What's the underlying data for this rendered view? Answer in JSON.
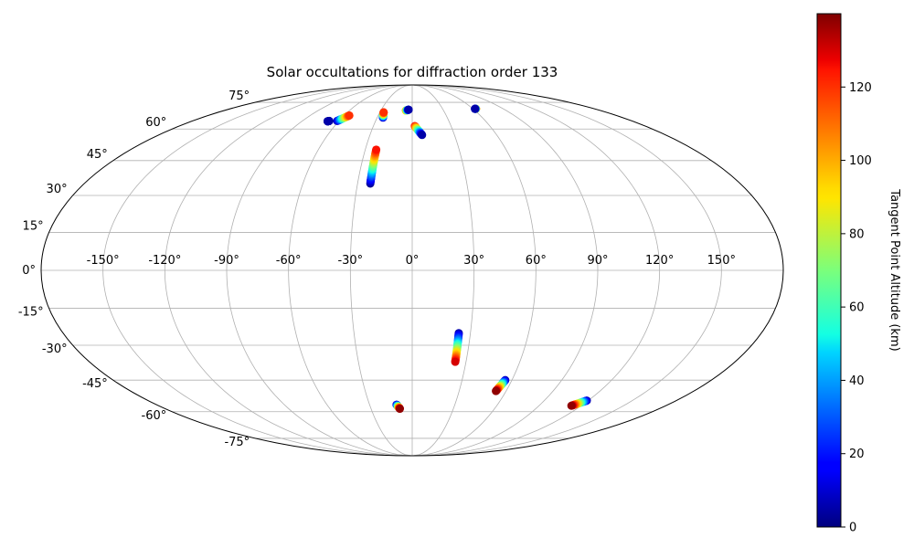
{
  "chart_data": {
    "type": "scatter",
    "projection": "mollweide",
    "title": "Solar occultations for diffraction order 133",
    "grid": true,
    "lon_ticks": [
      -150,
      -120,
      -90,
      -60,
      -30,
      0,
      30,
      60,
      90,
      120,
      150
    ],
    "lon_tick_labels": [
      "-150°",
      "-120°",
      "-90°",
      "-60°",
      "-30°",
      "0°",
      "30°",
      "60°",
      "90°",
      "120°",
      "150°"
    ],
    "lat_ticks": [
      -75,
      -60,
      -45,
      -30,
      -15,
      0,
      15,
      30,
      45,
      60,
      75
    ],
    "lat_tick_labels": [
      "-75°",
      "-60°",
      "-45°",
      "-30°",
      "-15°",
      "0°",
      "15°",
      "30°",
      "45°",
      "60°",
      "75°"
    ],
    "colorbar": {
      "label": "Tangent Point Altitude (km)",
      "colormap": "jet",
      "range": [
        0,
        140
      ],
      "ticks": [
        0,
        20,
        40,
        60,
        80,
        100,
        120
      ],
      "tick_labels": [
        "0",
        "20",
        "40",
        "60",
        "80",
        "100",
        "120"
      ]
    },
    "tracks": [
      {
        "lon_start": -69.0,
        "lat_start": 64.0,
        "alt_start": 5,
        "lon_end": -68.0,
        "lat_end": 64.2,
        "alt_end": 5
      },
      {
        "lon_start": -61.5,
        "lat_start": 64.2,
        "alt_start": 5,
        "lon_end": -55.5,
        "lat_end": 67.2,
        "alt_end": 120
      },
      {
        "lon_start": -25.0,
        "lat_start": 66.0,
        "alt_start": 5,
        "lon_end": -26.5,
        "lat_end": 69.0,
        "alt_end": 120
      },
      {
        "lon_start": -23.0,
        "lat_start": 35.0,
        "alt_start": 2,
        "lon_end": -23.0,
        "lat_end": 50.0,
        "alt_end": 125
      },
      {
        "lon_start": -6.0,
        "lat_start": 70.0,
        "alt_start": 105,
        "lon_end": -3.5,
        "lat_end": 70.5,
        "alt_end": 5
      },
      {
        "lon_start": 2.0,
        "lat_start": 61.5,
        "alt_start": 125,
        "lon_end": 7.0,
        "lat_end": 57.0,
        "alt_end": 5
      },
      {
        "lon_start": 63.0,
        "lat_start": 71.0,
        "alt_start": 110,
        "lon_end": 62.0,
        "lat_end": 71.0,
        "alt_end": 5
      },
      {
        "lon_start": 24.0,
        "lat_start": -25.0,
        "alt_start": 5,
        "lon_end": 24.0,
        "lat_end": -37.0,
        "alt_end": 130
      },
      {
        "lon_start": 56.0,
        "lat_start": -45.0,
        "alt_start": 5,
        "lon_end": 53.5,
        "lat_end": -50.0,
        "alt_end": 138
      },
      {
        "lon_start": 119.0,
        "lat_start": -54.5,
        "alt_start": 5,
        "lon_end": 113.0,
        "lat_end": -57.0,
        "alt_end": 138
      },
      {
        "lon_start": -11.0,
        "lat_start": -56.5,
        "alt_start": 5,
        "lon_end": -9.0,
        "lat_end": -58.5,
        "alt_end": 138
      }
    ]
  }
}
